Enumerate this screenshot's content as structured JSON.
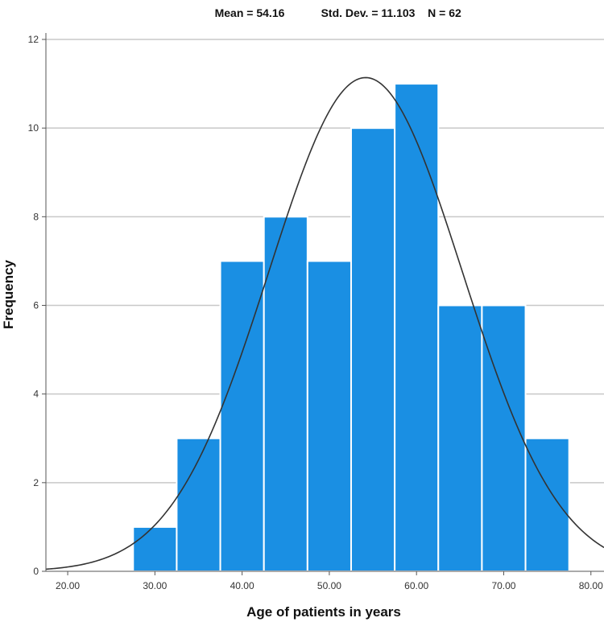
{
  "chart_data": {
    "type": "bar",
    "subtype": "histogram",
    "stats": {
      "mean_label": "Mean = 54.16",
      "std_label": "Std. Dev. = 11.103",
      "n_label": "N = 62"
    },
    "xlabel": "Age of patients in years",
    "ylabel": "Frequency",
    "xlim": [
      17.5,
      81.5
    ],
    "ylim": [
      0,
      12
    ],
    "x_ticks": [
      20,
      30,
      40,
      50,
      60,
      70,
      80
    ],
    "x_tick_labels": [
      "20.00",
      "30.00",
      "40.00",
      "50.00",
      "60.00",
      "70.00",
      "80.00"
    ],
    "y_ticks": [
      0,
      2,
      4,
      6,
      8,
      10,
      12
    ],
    "y_tick_labels": [
      "0",
      "2",
      "4",
      "6",
      "8",
      "10",
      "12"
    ],
    "bins": [
      {
        "start": 27.5,
        "end": 32.5,
        "count": 1
      },
      {
        "start": 32.5,
        "end": 37.5,
        "count": 3
      },
      {
        "start": 37.5,
        "end": 42.5,
        "count": 7
      },
      {
        "start": 42.5,
        "end": 47.5,
        "count": 8
      },
      {
        "start": 47.5,
        "end": 52.5,
        "count": 7
      },
      {
        "start": 52.5,
        "end": 57.5,
        "count": 10
      },
      {
        "start": 57.5,
        "end": 62.5,
        "count": 11
      },
      {
        "start": 62.5,
        "end": 67.5,
        "count": 6
      },
      {
        "start": 67.5,
        "end": 72.5,
        "count": 6
      },
      {
        "start": 72.5,
        "end": 77.5,
        "count": 3
      }
    ],
    "normal_curve": {
      "mean": 54.16,
      "std": 11.103,
      "n": 62,
      "bin_width": 5
    },
    "grid": true,
    "colors": {
      "bar": "#1a8fe3",
      "bar_edge": "#ffffff",
      "curve": "#333333",
      "grid": "#c8c8c8"
    }
  }
}
